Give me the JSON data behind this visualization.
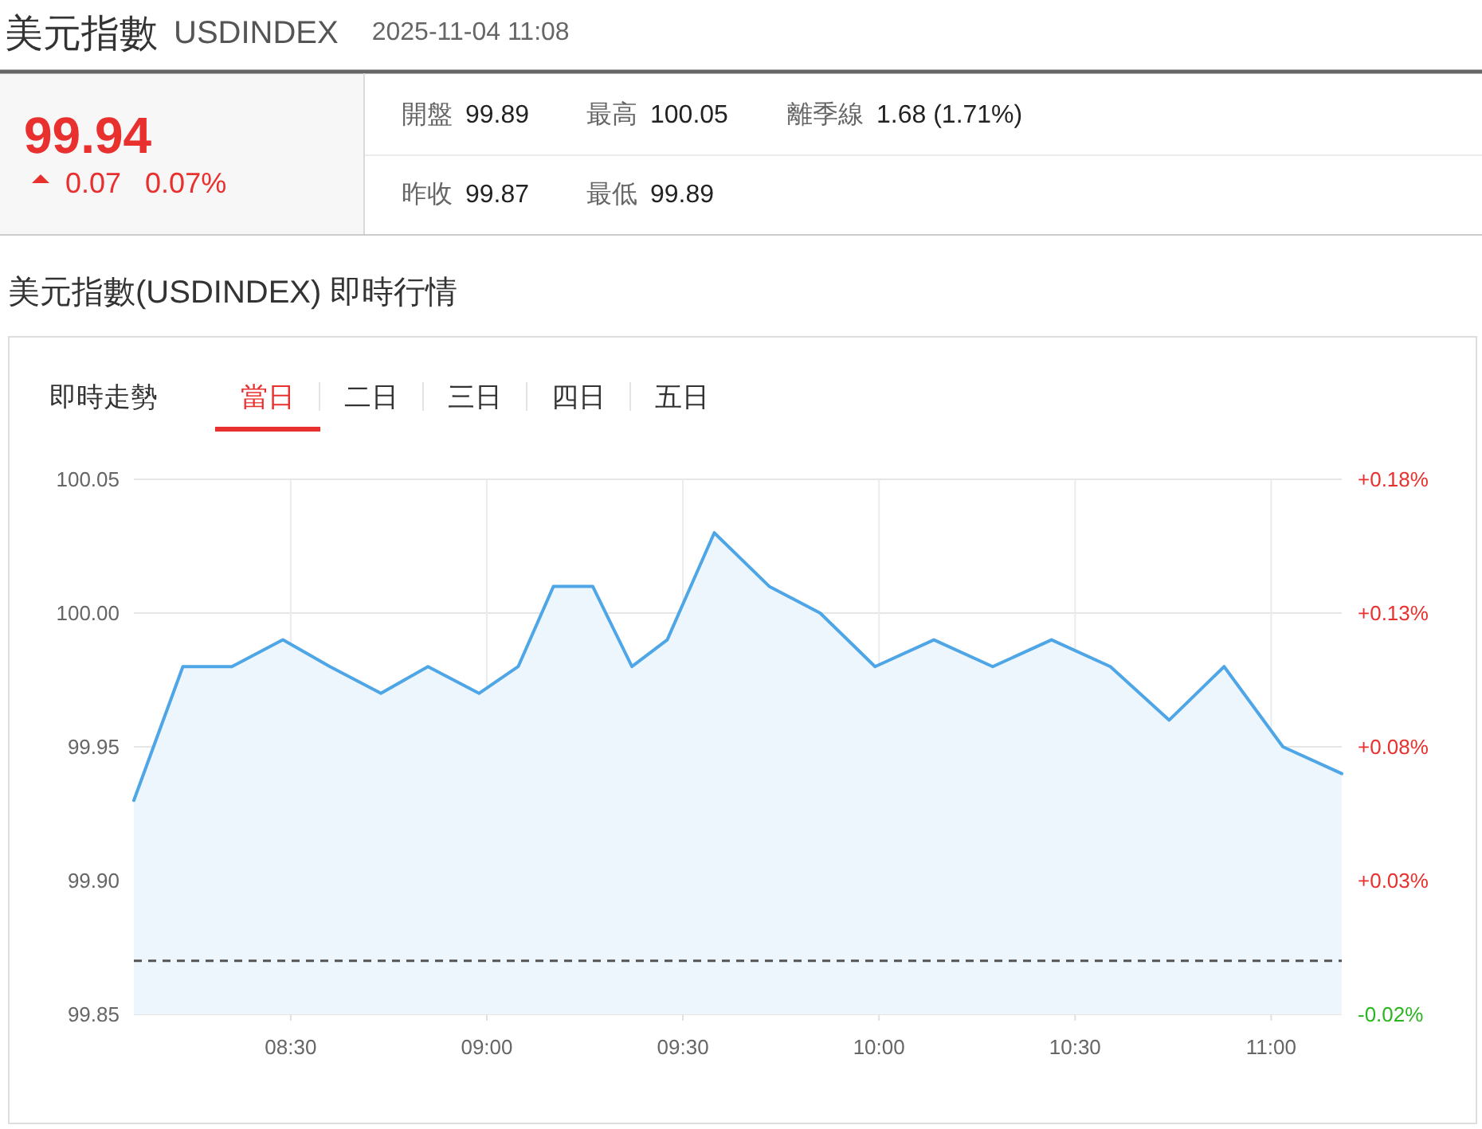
{
  "chart_data": [
    {
      "type": "other",
      "title": "美元指數",
      "subtitle": "USDINDEX",
      "annotations": [
        "2025-11-04 11:08",
        "99.94",
        "0.07",
        "0.07%",
        "開盤",
        "99.89",
        "最高",
        "100.05",
        "離季線",
        "1.68 (1.71%)",
        "昨收",
        "99.87",
        "最低",
        "99.89"
      ]
    },
    {
      "type": "area",
      "title": "美元指數(USDINDEX) 即時行情",
      "annotations": [
        "即時走勢",
        "當日",
        "二日",
        "三日",
        "四日",
        "五日"
      ],
      "x": [
        8.1,
        8.225,
        8.35,
        8.48,
        8.6,
        8.73,
        8.85,
        8.98,
        9.08,
        9.17,
        9.27,
        9.37,
        9.46,
        9.58,
        9.72,
        9.85,
        9.99,
        10.14,
        10.29,
        10.44,
        10.59,
        10.74,
        10.88,
        11.03,
        11.18
      ],
      "series": [
        {
          "color": "#4ea6e6",
          "values": [
            99.93,
            99.98,
            99.98,
            99.99,
            99.98,
            99.97,
            99.98,
            99.97,
            99.98,
            100.01,
            100.01,
            99.98,
            99.99,
            100.03,
            100.01,
            100.0,
            99.98,
            99.99,
            99.98,
            99.99,
            99.98,
            99.96,
            99.98,
            99.95,
            99.94
          ]
        }
      ],
      "xlim": [
        8.1,
        11.18
      ],
      "xticks": [
        {
          "value": 8.5,
          "label": "08:30"
        },
        {
          "value": 9,
          "label": "09:00"
        },
        {
          "value": 9.5,
          "label": "09:30"
        },
        {
          "value": 10,
          "label": "10:00"
        },
        {
          "value": 10.5,
          "label": "10:30"
        },
        {
          "value": 11,
          "label": "11:00"
        }
      ],
      "ylim": [
        99.85,
        100.05
      ],
      "yticks": [
        {
          "value": 99.85,
          "label": "99.85"
        },
        {
          "value": 99.9,
          "label": "99.90"
        },
        {
          "value": 99.95,
          "label": "99.95"
        },
        {
          "value": 100,
          "label": "100.00"
        },
        {
          "value": 100.05,
          "label": "100.05"
        }
      ],
      "y2lim": [
        -0.02,
        0.18
      ],
      "y2ticks": [
        {
          "value": -0.02,
          "label": "-0.02%"
        },
        {
          "value": 0.03,
          "label": "+0.03%"
        },
        {
          "value": 0.08,
          "label": "+0.08%"
        },
        {
          "value": 0.13,
          "label": "+0.13%"
        },
        {
          "value": 0.18,
          "label": "+0.18%"
        }
      ],
      "ref_lines": [
        {
          "axis": "y",
          "value": 99.87,
          "color": "#555555",
          "line_style": "dashed"
        }
      ],
      "grid": true
    }
  ]
}
